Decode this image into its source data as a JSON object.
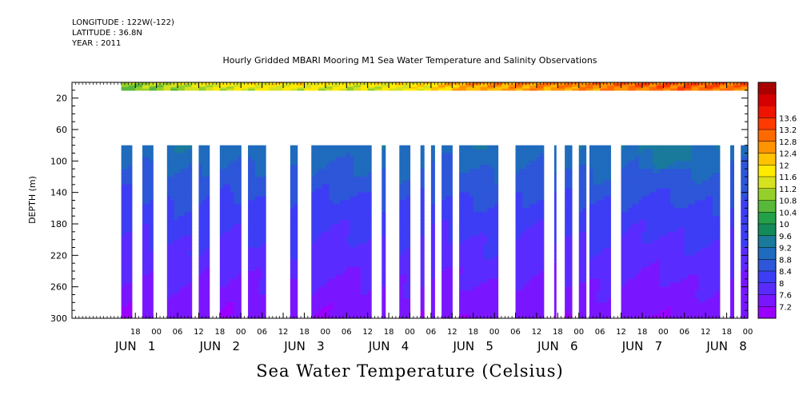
{
  "header": {
    "longitude": "LONGITUDE : 122W(-122)",
    "latitude": "LATITUDE : 36.8N",
    "year": "YEAR : 2011"
  },
  "chart_data": {
    "type": "heatmap",
    "title": "Hourly Gridded MBARI Mooring M1 Sea Water Temperature and Salinity Observations",
    "variable_label": "Sea Water Temperature (Celsius)",
    "ylabel": "DEPTH (m)",
    "y_reversed": true,
    "ylim": [
      0,
      300
    ],
    "y_ticks": [
      20,
      60,
      100,
      140,
      180,
      220,
      260,
      300
    ],
    "x_range_hours": [
      0,
      192
    ],
    "x_hour_labels": [
      {
        "h": 18,
        "label": "18"
      },
      {
        "h": 24,
        "label": "00"
      },
      {
        "h": 30,
        "label": "06"
      },
      {
        "h": 36,
        "label": "12"
      },
      {
        "h": 42,
        "label": "18"
      },
      {
        "h": 48,
        "label": "00"
      },
      {
        "h": 54,
        "label": "06"
      },
      {
        "h": 60,
        "label": "12"
      },
      {
        "h": 66,
        "label": "18"
      },
      {
        "h": 72,
        "label": "00"
      },
      {
        "h": 78,
        "label": "06"
      },
      {
        "h": 84,
        "label": "12"
      },
      {
        "h": 90,
        "label": "18"
      },
      {
        "h": 96,
        "label": "00"
      },
      {
        "h": 102,
        "label": "06"
      },
      {
        "h": 108,
        "label": "12"
      },
      {
        "h": 114,
        "label": "18"
      },
      {
        "h": 120,
        "label": "00"
      },
      {
        "h": 126,
        "label": "06"
      },
      {
        "h": 132,
        "label": "12"
      },
      {
        "h": 138,
        "label": "18"
      },
      {
        "h": 144,
        "label": "00"
      },
      {
        "h": 150,
        "label": "06"
      },
      {
        "h": 156,
        "label": "12"
      },
      {
        "h": 162,
        "label": "18"
      },
      {
        "h": 168,
        "label": "00"
      },
      {
        "h": 174,
        "label": "06"
      },
      {
        "h": 180,
        "label": "12"
      },
      {
        "h": 186,
        "label": "18"
      },
      {
        "h": 192,
        "label": "00"
      },
      {
        "h": 198,
        "label": "06"
      },
      {
        "h": 204,
        "label": "12"
      }
    ],
    "x_day_labels": [
      {
        "h": 18,
        "label": "JUN 1"
      },
      {
        "h": 42,
        "label": "JUN 2"
      },
      {
        "h": 66,
        "label": "JUN 3"
      },
      {
        "h": 90,
        "label": "JUN 4"
      },
      {
        "h": 114,
        "label": "JUN 5"
      },
      {
        "h": 138,
        "label": "JUN 6"
      },
      {
        "h": 162,
        "label": "JUN 7"
      },
      {
        "h": 186,
        "label": "JUN 8"
      }
    ],
    "colorbar_levels": [
      7.2,
      7.6,
      8,
      8.4,
      8.8,
      9.2,
      9.6,
      10,
      10.4,
      10.8,
      11.2,
      11.6,
      12,
      12.4,
      12.8,
      13.2,
      13.6
    ],
    "colorbar_labels": [
      "7.2",
      "7.6",
      "8",
      "8.4",
      "8.8",
      "9.2",
      "9.6",
      "10",
      "10.4",
      "10.8",
      "11.2",
      "11.6",
      "12",
      "12.4",
      "12.8",
      "13.2",
      "13.6"
    ],
    "colors": [
      "#9900ff",
      "#7a16ff",
      "#5a2bff",
      "#3d3df5",
      "#2d56d8",
      "#1f6bbd",
      "#197a9c",
      "#138a5a",
      "#23a048",
      "#58b83a",
      "#95cf2a",
      "#d6e21f",
      "#ffea00",
      "#ffc300",
      "#ff9400",
      "#ff6a00",
      "#ff3a00",
      "#ee1400",
      "#d40000",
      "#aa0000"
    ],
    "surface_layer": {
      "depth_range": [
        0,
        10
      ],
      "x_start_hour": 14,
      "temperature_points": [
        [
          14,
          10.9
        ],
        [
          40,
          11.6
        ],
        [
          60,
          11.8
        ],
        [
          80,
          11.6
        ],
        [
          100,
          11.9
        ],
        [
          112,
          12.6
        ],
        [
          140,
          12.8
        ],
        [
          160,
          13.1
        ],
        [
          176,
          13.2
        ],
        [
          192,
          13.0
        ]
      ]
    },
    "deep_layer": {
      "depth_range": [
        80,
        300
      ],
      "profile_depths": [
        80,
        120,
        160,
        200,
        240,
        280,
        300
      ],
      "profile_temps": [
        9.1,
        8.7,
        8.3,
        8.0,
        7.7,
        7.4,
        7.3
      ],
      "data_segments_hours": [
        [
          14,
          17
        ],
        [
          20,
          23
        ],
        [
          27,
          34
        ],
        [
          36,
          39
        ],
        [
          42,
          48
        ],
        [
          50,
          55
        ],
        [
          62,
          64
        ],
        [
          68,
          85
        ],
        [
          88,
          89
        ],
        [
          93,
          96
        ],
        [
          99,
          100
        ],
        [
          102,
          103
        ],
        [
          105,
          108
        ],
        [
          110,
          121
        ],
        [
          126,
          134
        ],
        [
          137,
          137.5
        ],
        [
          140,
          142
        ],
        [
          144,
          146
        ],
        [
          147,
          153
        ],
        [
          156,
          184
        ],
        [
          187,
          188
        ],
        [
          190,
          192
        ]
      ]
    }
  }
}
